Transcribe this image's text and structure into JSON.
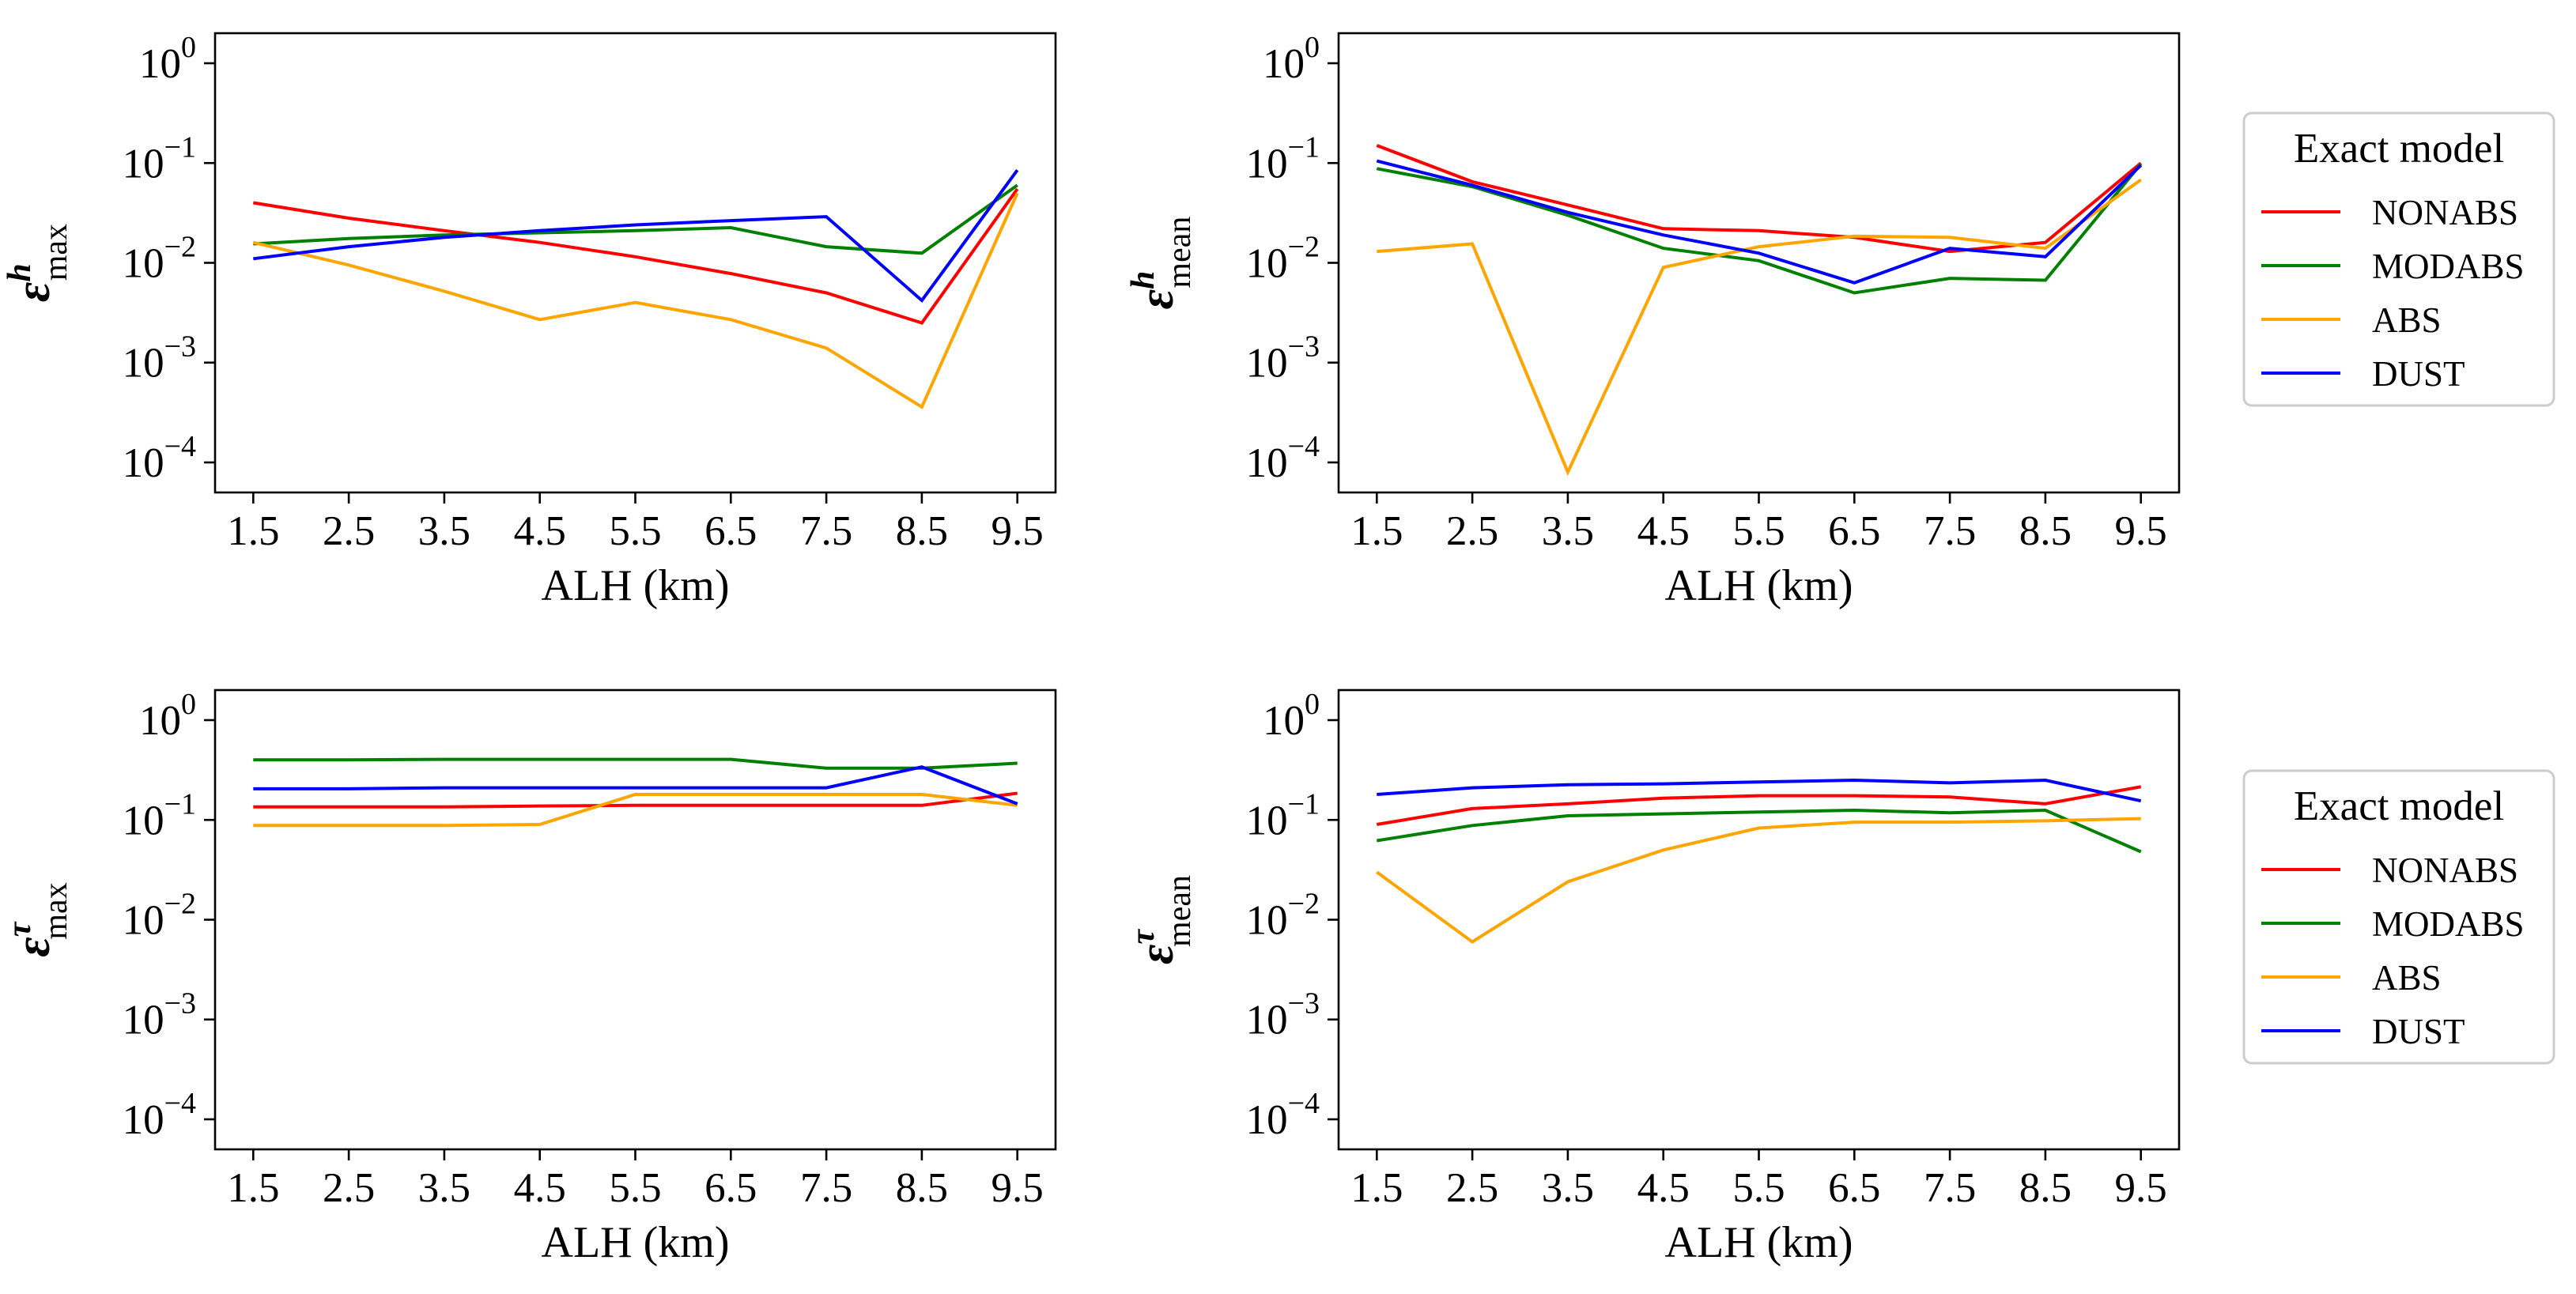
{
  "colors": {
    "NONABS": "#ff0000",
    "MODABS": "#008000",
    "ABS": "#ffa500",
    "DUST": "#0000ff"
  },
  "legends": [
    {
      "title": "Exact model",
      "entries": [
        "NONABS",
        "MODABS",
        "ABS",
        "DUST"
      ]
    },
    {
      "title": "Exact model",
      "entries": [
        "NONABS",
        "MODABS",
        "ABS",
        "DUST"
      ]
    }
  ],
  "chart_data": [
    {
      "type": "line",
      "xlabel": "ALH (km)",
      "ylabel": {
        "base": "ε",
        "sup": "h",
        "sub": "max"
      },
      "x": [
        1.5,
        2.5,
        3.5,
        4.5,
        5.5,
        6.5,
        7.5,
        8.5,
        9.5
      ],
      "xticks": [
        "1.5",
        "2.5",
        "3.5",
        "4.5",
        "5.5",
        "6.5",
        "7.5",
        "8.5",
        "9.5"
      ],
      "yscale": "log",
      "ylim": [
        5e-05,
        2
      ],
      "yticks": [
        {
          "base": "10",
          "exp": "0"
        },
        {
          "base": "10",
          "exp": "−1"
        },
        {
          "base": "10",
          "exp": "−2"
        },
        {
          "base": "10",
          "exp": "−3"
        },
        {
          "base": "10",
          "exp": "−4"
        }
      ],
      "series": [
        {
          "name": "NONABS",
          "values": [
            0.04,
            0.028,
            0.021,
            0.016,
            0.0115,
            0.0078,
            0.005,
            0.0025,
            0.055
          ]
        },
        {
          "name": "MODABS",
          "values": [
            0.0155,
            0.0175,
            0.019,
            0.02,
            0.021,
            0.0225,
            0.0145,
            0.0125,
            0.06
          ]
        },
        {
          "name": "ABS",
          "values": [
            0.016,
            0.0095,
            0.0052,
            0.0027,
            0.004,
            0.0027,
            0.0014,
            0.00036,
            0.05
          ]
        },
        {
          "name": "DUST",
          "values": [
            0.011,
            0.0145,
            0.018,
            0.021,
            0.024,
            0.0265,
            0.029,
            0.0042,
            0.085
          ]
        }
      ]
    },
    {
      "type": "line",
      "xlabel": "ALH (km)",
      "ylabel": {
        "base": "ε",
        "sup": "h",
        "sub": "mean"
      },
      "x": [
        1.5,
        2.5,
        3.5,
        4.5,
        5.5,
        6.5,
        7.5,
        8.5,
        9.5
      ],
      "xticks": [
        "1.5",
        "2.5",
        "3.5",
        "4.5",
        "5.5",
        "6.5",
        "7.5",
        "8.5",
        "9.5"
      ],
      "yscale": "log",
      "ylim": [
        5e-05,
        2
      ],
      "yticks": [
        {
          "base": "10",
          "exp": "0"
        },
        {
          "base": "10",
          "exp": "−1"
        },
        {
          "base": "10",
          "exp": "−2"
        },
        {
          "base": "10",
          "exp": "−3"
        },
        {
          "base": "10",
          "exp": "−4"
        }
      ],
      "series": [
        {
          "name": "NONABS",
          "values": [
            0.15,
            0.065,
            0.038,
            0.022,
            0.021,
            0.018,
            0.013,
            0.016,
            0.1
          ]
        },
        {
          "name": "MODABS",
          "values": [
            0.088,
            0.058,
            0.03,
            0.014,
            0.0105,
            0.005,
            0.007,
            0.0067,
            0.098
          ]
        },
        {
          "name": "ABS",
          "values": [
            0.013,
            0.0155,
            8e-05,
            0.009,
            0.0145,
            0.0185,
            0.018,
            0.014,
            0.068
          ]
        },
        {
          "name": "DUST",
          "values": [
            0.105,
            0.06,
            0.032,
            0.019,
            0.0125,
            0.0063,
            0.014,
            0.0115,
            0.095
          ]
        }
      ]
    },
    {
      "type": "line",
      "xlabel": "ALH (km)",
      "ylabel": {
        "base": "ε",
        "sup": "τ",
        "sub": "max"
      },
      "x": [
        1.5,
        2.5,
        3.5,
        4.5,
        5.5,
        6.5,
        7.5,
        8.5,
        9.5
      ],
      "xticks": [
        "1.5",
        "2.5",
        "3.5",
        "4.5",
        "5.5",
        "6.5",
        "7.5",
        "8.5",
        "9.5"
      ],
      "yscale": "log",
      "ylim": [
        5e-05,
        2
      ],
      "yticks": [
        {
          "base": "10",
          "exp": "0"
        },
        {
          "base": "10",
          "exp": "−1"
        },
        {
          "base": "10",
          "exp": "−2"
        },
        {
          "base": "10",
          "exp": "−3"
        },
        {
          "base": "10",
          "exp": "−4"
        }
      ],
      "series": [
        {
          "name": "NONABS",
          "values": [
            0.135,
            0.135,
            0.135,
            0.138,
            0.14,
            0.14,
            0.14,
            0.14,
            0.185
          ]
        },
        {
          "name": "MODABS",
          "values": [
            0.4,
            0.4,
            0.405,
            0.405,
            0.405,
            0.405,
            0.33,
            0.33,
            0.37
          ]
        },
        {
          "name": "ABS",
          "values": [
            0.088,
            0.088,
            0.088,
            0.09,
            0.18,
            0.18,
            0.18,
            0.18,
            0.14
          ]
        },
        {
          "name": "DUST",
          "values": [
            0.205,
            0.205,
            0.21,
            0.21,
            0.21,
            0.21,
            0.21,
            0.34,
            0.145
          ]
        }
      ]
    },
    {
      "type": "line",
      "xlabel": "ALH (km)",
      "ylabel": {
        "base": "ε",
        "sup": "τ",
        "sub": "mean"
      },
      "x": [
        1.5,
        2.5,
        3.5,
        4.5,
        5.5,
        6.5,
        7.5,
        8.5,
        9.5
      ],
      "xticks": [
        "1.5",
        "2.5",
        "3.5",
        "4.5",
        "5.5",
        "6.5",
        "7.5",
        "8.5",
        "9.5"
      ],
      "yscale": "log",
      "ylim": [
        5e-05,
        2
      ],
      "yticks": [
        {
          "base": "10",
          "exp": "0"
        },
        {
          "base": "10",
          "exp": "−1"
        },
        {
          "base": "10",
          "exp": "−2"
        },
        {
          "base": "10",
          "exp": "−3"
        },
        {
          "base": "10",
          "exp": "−4"
        }
      ],
      "series": [
        {
          "name": "NONABS",
          "values": [
            0.09,
            0.13,
            0.145,
            0.165,
            0.175,
            0.175,
            0.17,
            0.145,
            0.215
          ]
        },
        {
          "name": "MODABS",
          "values": [
            0.062,
            0.088,
            0.11,
            0.115,
            0.12,
            0.125,
            0.118,
            0.125,
            0.048
          ]
        },
        {
          "name": "ABS",
          "values": [
            0.03,
            0.006,
            0.024,
            0.05,
            0.083,
            0.095,
            0.095,
            0.098,
            0.103
          ]
        },
        {
          "name": "DUST",
          "values": [
            0.18,
            0.21,
            0.225,
            0.23,
            0.24,
            0.25,
            0.235,
            0.25,
            0.155
          ]
        }
      ]
    }
  ]
}
